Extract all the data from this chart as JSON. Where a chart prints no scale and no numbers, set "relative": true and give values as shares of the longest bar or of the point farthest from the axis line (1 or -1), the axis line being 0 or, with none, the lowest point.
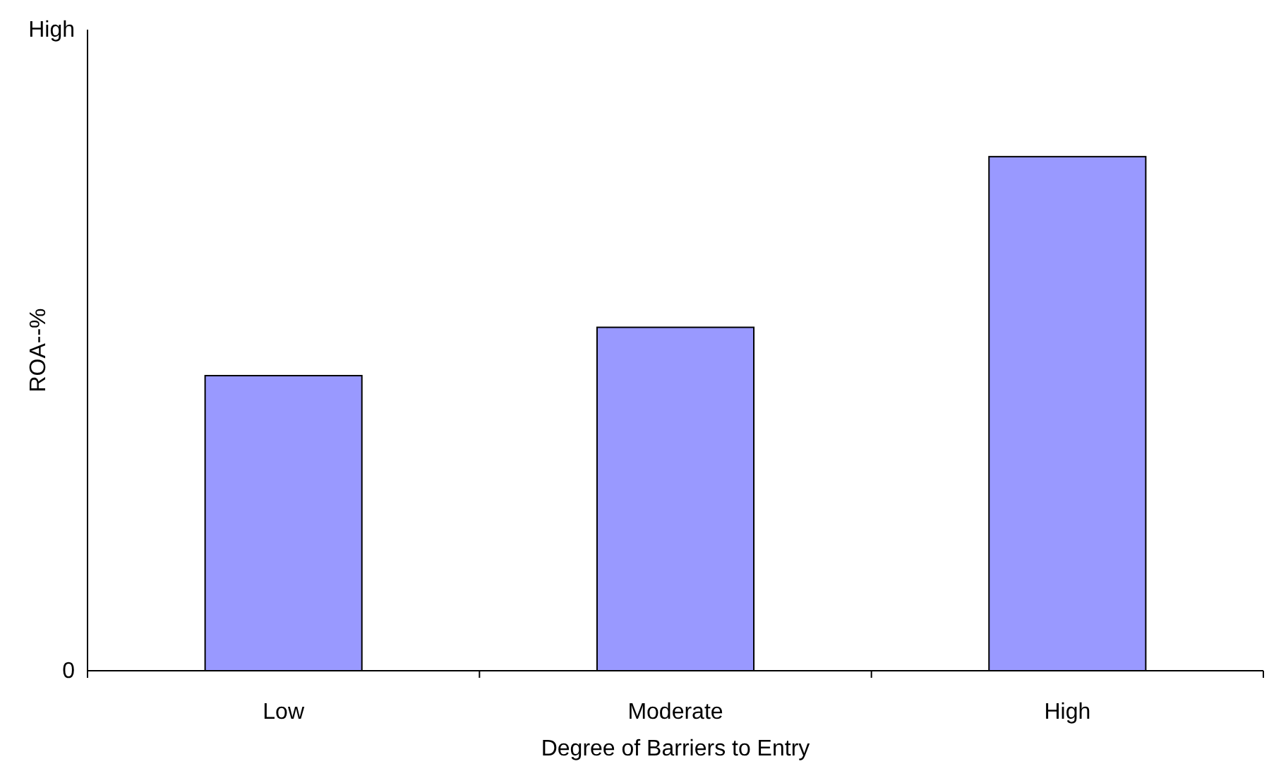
{
  "chart_data": {
    "type": "bar",
    "relative": true,
    "categories": [
      "Low",
      "Moderate",
      "High"
    ],
    "values": [
      0.574,
      0.668,
      1
    ],
    "color": "#9999ff",
    "xlabel": "Degree of Barriers to Entry",
    "ylabel": "ROA--%",
    "annotations": [
      "High",
      "0"
    ]
  }
}
